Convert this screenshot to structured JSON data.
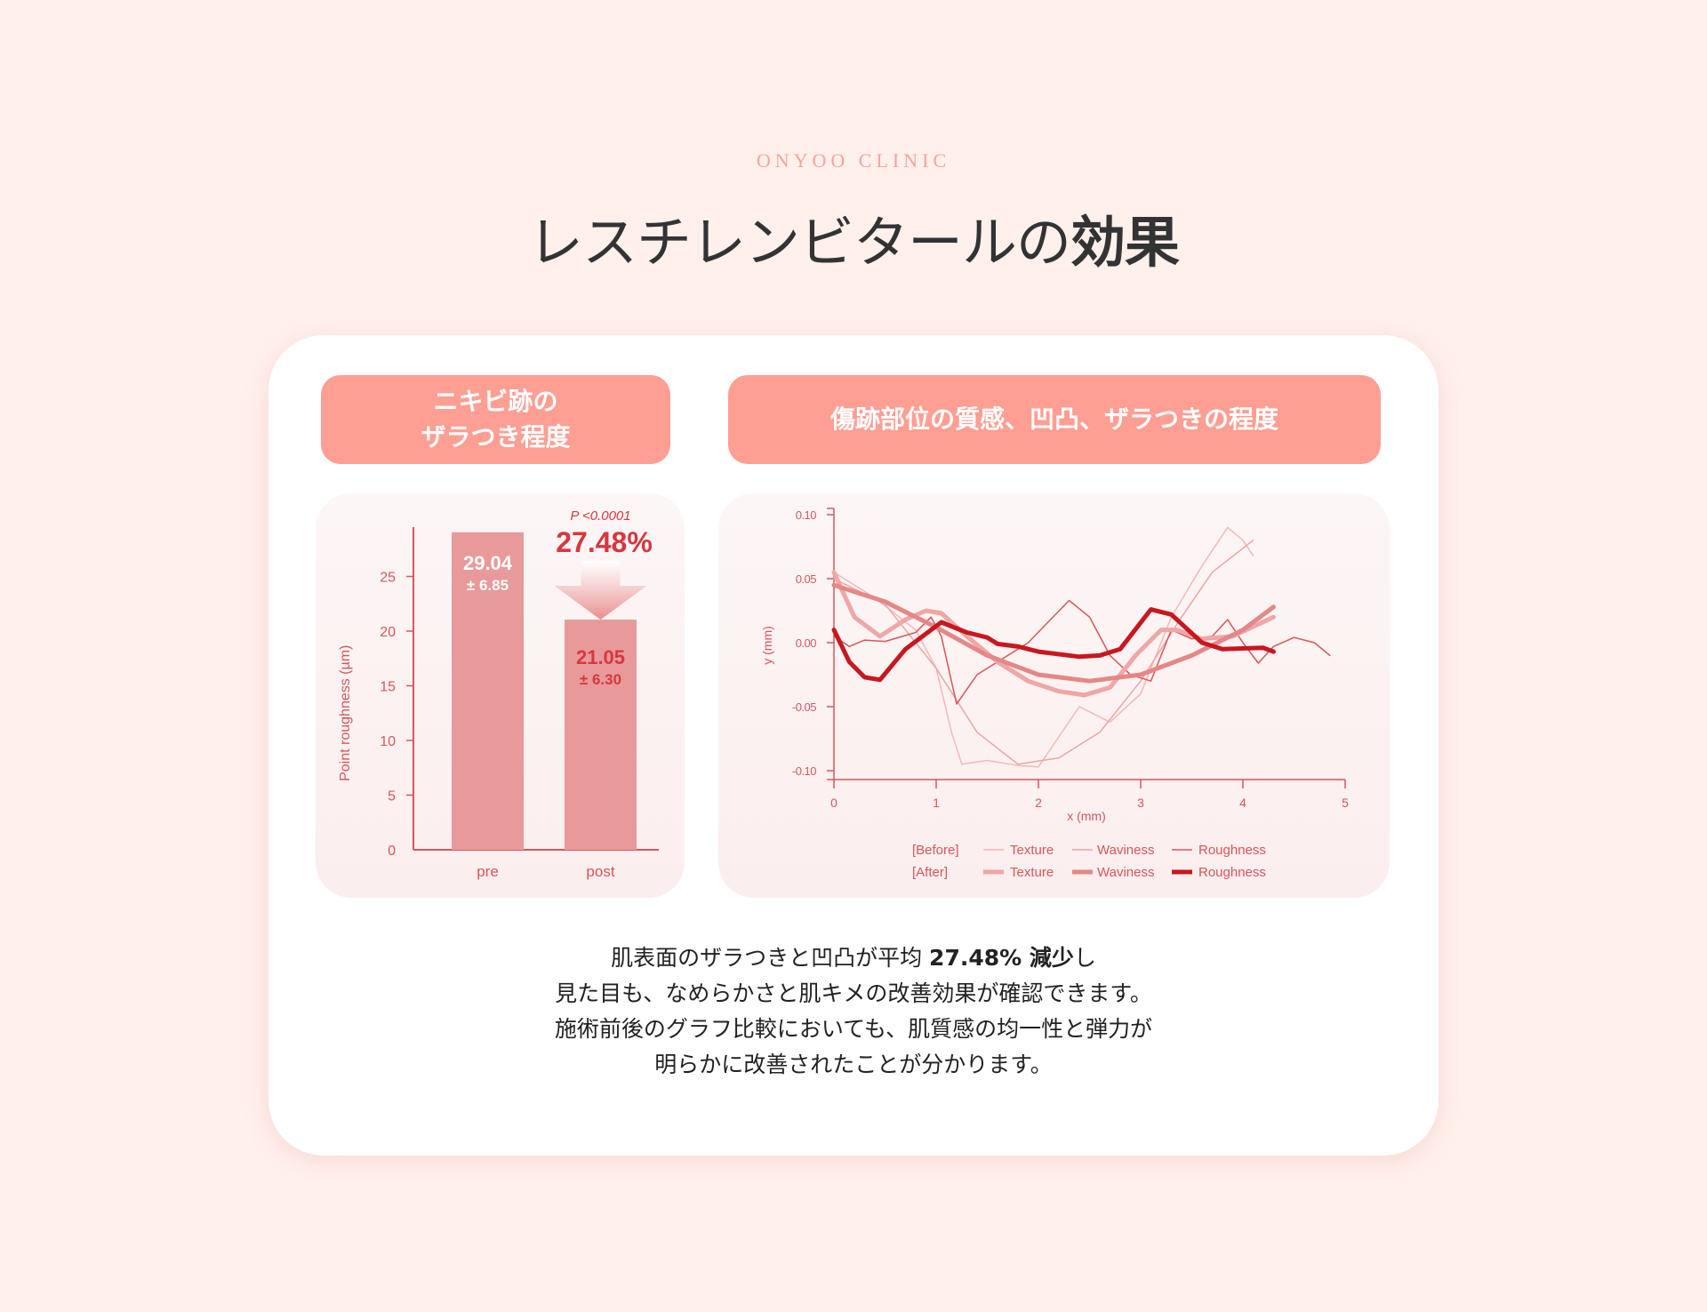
{
  "header": {
    "brand": "ONYOO CLINIC",
    "title_main": "レスチレンビタールの",
    "title_bold": "効果"
  },
  "pills": {
    "left_line1": "ニキビ跡の",
    "left_line2": "ザラつき程度",
    "right": "傷跡部位の質感、凹凸、ザラつきの程度"
  },
  "colors": {
    "background": "#fff0ec",
    "pill": "#ff9e93",
    "bar": "#e89a9a",
    "accent_red": "#d9363e",
    "axis": "#d9555b"
  },
  "chart_data": [
    {
      "type": "bar",
      "ylabel": "Point roughness (µm)",
      "categories": [
        "pre",
        "post"
      ],
      "values": [
        29.04,
        21.05
      ],
      "value_labels": [
        "29.04",
        "21.05"
      ],
      "sd_labels": [
        "± 6.85",
        "± 6.30"
      ],
      "ylim": [
        0,
        29
      ],
      "yticks": [
        0,
        5,
        10,
        15,
        20,
        25
      ],
      "annotation_p": "P <0.0001",
      "annotation_change": "27.48%",
      "grid": false
    },
    {
      "type": "line",
      "xlabel": "x (mm)",
      "ylabel": "y (mm)",
      "xlim": [
        0,
        5
      ],
      "ylim": [
        -0.1,
        0.1
      ],
      "xticks": [
        "0",
        "1",
        "2",
        "3",
        "4",
        "5"
      ],
      "yticks": [
        "0.10",
        "0.05",
        "0.00",
        "-0.05",
        "-0.10"
      ],
      "grid": false,
      "legend": {
        "placement": "bottom",
        "before_label": "[Before]",
        "after_label": "[After]"
      },
      "series": [
        {
          "group": "Before",
          "name": "Texture",
          "color": "#f4b8b8",
          "width": 1.5,
          "points": [
            [
              0,
              0.055
            ],
            [
              0.4,
              0.035
            ],
            [
              0.8,
              0.01
            ],
            [
              1.0,
              -0.02
            ],
            [
              1.15,
              -0.07
            ],
            [
              1.25,
              -0.095
            ],
            [
              1.5,
              -0.092
            ],
            [
              1.8,
              -0.096
            ],
            [
              2.0,
              -0.097
            ],
            [
              2.4,
              -0.05
            ],
            [
              2.7,
              -0.062
            ],
            [
              3.0,
              -0.04
            ],
            [
              3.3,
              0.02
            ],
            [
              3.6,
              0.06
            ],
            [
              3.85,
              0.09
            ],
            [
              4.0,
              0.08
            ],
            [
              4.1,
              0.068
            ]
          ]
        },
        {
          "group": "Before",
          "name": "Waviness",
          "color": "#eea4a4",
          "width": 1.5,
          "points": [
            [
              0,
              0.05
            ],
            [
              0.5,
              0.03
            ],
            [
              1.0,
              -0.02
            ],
            [
              1.4,
              -0.07
            ],
            [
              1.8,
              -0.095
            ],
            [
              2.2,
              -0.09
            ],
            [
              2.6,
              -0.07
            ],
            [
              3.0,
              -0.03
            ],
            [
              3.4,
              0.02
            ],
            [
              3.7,
              0.055
            ],
            [
              4.1,
              0.08
            ]
          ]
        },
        {
          "group": "Before",
          "name": "Roughness",
          "color": "#d9555b",
          "width": 1.5,
          "points": [
            [
              0,
              0.005
            ],
            [
              0.15,
              -0.003
            ],
            [
              0.3,
              0.002
            ],
            [
              0.5,
              0.001
            ],
            [
              0.8,
              0.008
            ],
            [
              0.95,
              0.02
            ],
            [
              1.05,
              0.005
            ],
            [
              1.2,
              -0.048
            ],
            [
              1.4,
              -0.025
            ],
            [
              1.7,
              -0.01
            ],
            [
              1.9,
              0.0
            ],
            [
              2.3,
              0.033
            ],
            [
              2.5,
              0.02
            ],
            [
              2.7,
              -0.01
            ],
            [
              2.9,
              -0.025
            ],
            [
              3.1,
              -0.03
            ],
            [
              3.3,
              0.01
            ],
            [
              3.5,
              0.003
            ],
            [
              3.7,
              0.005
            ],
            [
              3.85,
              0.018
            ],
            [
              4.0,
              0.0
            ],
            [
              4.15,
              -0.016
            ],
            [
              4.3,
              -0.003
            ],
            [
              4.5,
              0.004
            ],
            [
              4.7,
              0.0
            ],
            [
              4.85,
              -0.01
            ]
          ]
        },
        {
          "group": "After",
          "name": "Texture",
          "color": "#f0a6a6",
          "width": 5,
          "points": [
            [
              0,
              0.055
            ],
            [
              0.2,
              0.02
            ],
            [
              0.45,
              0.005
            ],
            [
              0.7,
              0.018
            ],
            [
              0.9,
              0.025
            ],
            [
              1.05,
              0.023
            ],
            [
              1.3,
              0.005
            ],
            [
              1.6,
              -0.015
            ],
            [
              1.9,
              -0.03
            ],
            [
              2.2,
              -0.038
            ],
            [
              2.45,
              -0.041
            ],
            [
              2.7,
              -0.035
            ],
            [
              2.95,
              -0.01
            ],
            [
              3.2,
              0.01
            ],
            [
              3.35,
              0.01
            ],
            [
              3.6,
              0.003
            ],
            [
              3.9,
              0.005
            ],
            [
              4.3,
              0.02
            ]
          ]
        },
        {
          "group": "After",
          "name": "Waviness",
          "color": "#e58787",
          "width": 5,
          "points": [
            [
              0,
              0.045
            ],
            [
              0.5,
              0.032
            ],
            [
              1.0,
              0.012
            ],
            [
              1.5,
              -0.01
            ],
            [
              2.0,
              -0.025
            ],
            [
              2.5,
              -0.03
            ],
            [
              3.0,
              -0.025
            ],
            [
              3.5,
              -0.01
            ],
            [
              4.0,
              0.01
            ],
            [
              4.3,
              0.028
            ]
          ]
        },
        {
          "group": "After",
          "name": "Roughness",
          "color": "#c8171f",
          "width": 5,
          "points": [
            [
              0,
              0.01
            ],
            [
              0.15,
              -0.015
            ],
            [
              0.3,
              -0.027
            ],
            [
              0.45,
              -0.029
            ],
            [
              0.7,
              -0.005
            ],
            [
              1.05,
              0.016
            ],
            [
              1.3,
              0.008
            ],
            [
              1.5,
              0.004
            ],
            [
              1.6,
              -0.001
            ],
            [
              1.8,
              -0.003
            ],
            [
              2.0,
              -0.007
            ],
            [
              2.4,
              -0.011
            ],
            [
              2.6,
              -0.01
            ],
            [
              2.8,
              -0.005
            ],
            [
              3.1,
              0.026
            ],
            [
              3.3,
              0.022
            ],
            [
              3.6,
              0.0
            ],
            [
              3.8,
              -0.005
            ],
            [
              4.2,
              -0.004
            ],
            [
              4.3,
              -0.007
            ]
          ]
        }
      ]
    }
  ],
  "description": {
    "line1_pre": "肌表面のザラつきと凹凸が平均 ",
    "line1_bold": "27.48% 減少",
    "line1_post": "し",
    "line2": "見た目も、なめらかさと肌キメの改善効果が確認できます。",
    "line3": "施術前後のグラフ比較においても、肌質感の均一性と弾力が",
    "line4": "明らかに改善されたことが分かります。"
  }
}
